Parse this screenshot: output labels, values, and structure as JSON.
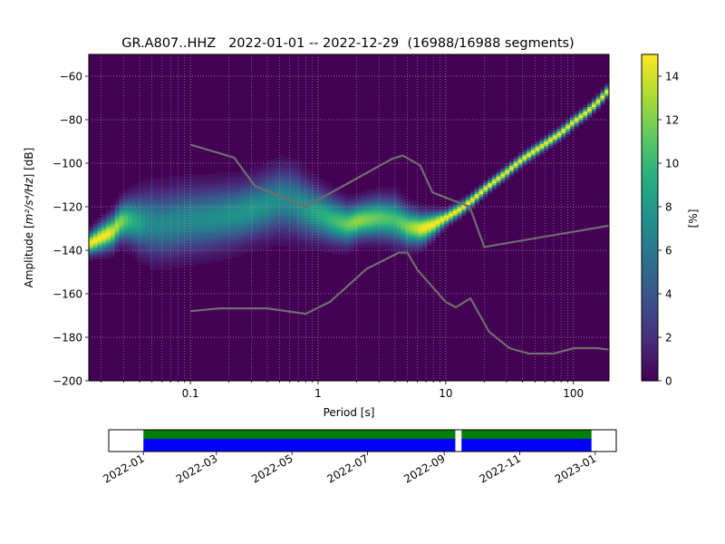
{
  "chart_data": [
    {
      "type": "heatmap",
      "title": "GR.A807..HHZ   2022-01-01 -- 2022-12-29  (16988/16988 segments)",
      "xlabel": "Period [s]",
      "ylabel_prefix": "Amplitude [",
      "ylabel_unit": "m²/s⁴/Hz",
      "ylabel_suffix": "] [dB]",
      "xscale": "log",
      "xlim": [
        0.016,
        190
      ],
      "ylim": [
        -200,
        -50
      ],
      "xticks": [
        {
          "v": 0.1,
          "label": "0.1"
        },
        {
          "v": 1,
          "label": "1"
        },
        {
          "v": 10,
          "label": "10"
        },
        {
          "v": 100,
          "label": "100"
        }
      ],
      "yticks": [
        -200,
        -180,
        -160,
        -140,
        -120,
        -100,
        -80,
        -60
      ],
      "colorbar": {
        "label": "[%]",
        "range": [
          0,
          15
        ],
        "ticks": [
          0,
          2,
          4,
          6,
          8,
          10,
          12,
          14
        ],
        "colors": [
          "#440154",
          "#472d7b",
          "#3b528b",
          "#2c728e",
          "#21918c",
          "#28ae80",
          "#5ec962",
          "#addc30",
          "#fde725"
        ]
      },
      "background_color": "#440154",
      "noise_model_color": "#6e6e6e",
      "nhnm": [
        [
          0.1,
          -91.5
        ],
        [
          0.22,
          -97.4
        ],
        [
          0.32,
          -110.5
        ],
        [
          0.8,
          -120
        ],
        [
          3.8,
          -98
        ],
        [
          4.6,
          -96.5
        ],
        [
          6.3,
          -101
        ],
        [
          7.9,
          -113.5
        ],
        [
          15.4,
          -120
        ],
        [
          20,
          -138.5
        ],
        [
          354.8,
          -126
        ],
        [
          10000,
          -80
        ]
      ],
      "nlnm": [
        [
          0.1,
          -168
        ],
        [
          0.17,
          -166.7
        ],
        [
          0.4,
          -166.7
        ],
        [
          0.8,
          -169.2
        ],
        [
          1.24,
          -163.7
        ],
        [
          2.4,
          -148.6
        ],
        [
          4.3,
          -141.1
        ],
        [
          5,
          -141.1
        ],
        [
          6,
          -149
        ],
        [
          10,
          -163.8
        ],
        [
          12,
          -166.2
        ],
        [
          15.6,
          -162.1
        ],
        [
          21.9,
          -177.5
        ],
        [
          31.6,
          -185
        ],
        [
          45,
          -187.5
        ],
        [
          70,
          -187.5
        ],
        [
          101,
          -185
        ],
        [
          154,
          -185
        ],
        [
          328,
          -187.5
        ],
        [
          600,
          -184.4
        ],
        [
          10000,
          -168
        ]
      ],
      "psd_mode": [
        [
          0.016,
          -137
        ],
        [
          0.02,
          -134
        ],
        [
          0.025,
          -131
        ],
        [
          0.028,
          -127
        ],
        [
          0.032,
          -126
        ],
        [
          0.04,
          -127
        ],
        [
          0.06,
          -128
        ],
        [
          0.1,
          -126
        ],
        [
          0.15,
          -125
        ],
        [
          0.25,
          -123
        ],
        [
          0.4,
          -119
        ],
        [
          0.5,
          -117
        ],
        [
          0.65,
          -118
        ],
        [
          0.8,
          -121
        ],
        [
          1.0,
          -123
        ],
        [
          1.3,
          -126
        ],
        [
          1.7,
          -128
        ],
        [
          2.2,
          -126
        ],
        [
          3.0,
          -125
        ],
        [
          4.0,
          -126
        ],
        [
          5.0,
          -129
        ],
        [
          6.5,
          -130
        ],
        [
          8.0,
          -128
        ],
        [
          10,
          -125
        ],
        [
          13,
          -121
        ],
        [
          16,
          -117
        ],
        [
          20,
          -112
        ],
        [
          30,
          -104
        ],
        [
          40,
          -98
        ],
        [
          60,
          -91
        ],
        [
          80,
          -86
        ],
        [
          100,
          -81
        ],
        [
          130,
          -76
        ],
        [
          160,
          -71
        ],
        [
          190,
          -66
        ]
      ],
      "psd_spread": [
        [
          0.016,
          3
        ],
        [
          0.028,
          5
        ],
        [
          0.05,
          9
        ],
        [
          0.1,
          9
        ],
        [
          0.3,
          8
        ],
        [
          0.6,
          9
        ],
        [
          1.0,
          7
        ],
        [
          2.0,
          5
        ],
        [
          4.0,
          6
        ],
        [
          7.0,
          4
        ],
        [
          10,
          2
        ],
        [
          20,
          1.5
        ],
        [
          190,
          1.5
        ]
      ]
    },
    {
      "type": "timeline",
      "start": "2022-01-01",
      "end": "2022-12-29",
      "xlim": [
        "2021-12-04",
        "2023-01-18"
      ],
      "xticks": [
        "2022-01",
        "2022-03",
        "2022-05",
        "2022-07",
        "2022-09",
        "2022-11",
        "2023-01"
      ],
      "gaps": [
        [
          "2022-09-10",
          "2022-09-15"
        ]
      ],
      "colors": {
        "top": "#008000",
        "bottom": "#0000ff"
      }
    }
  ]
}
